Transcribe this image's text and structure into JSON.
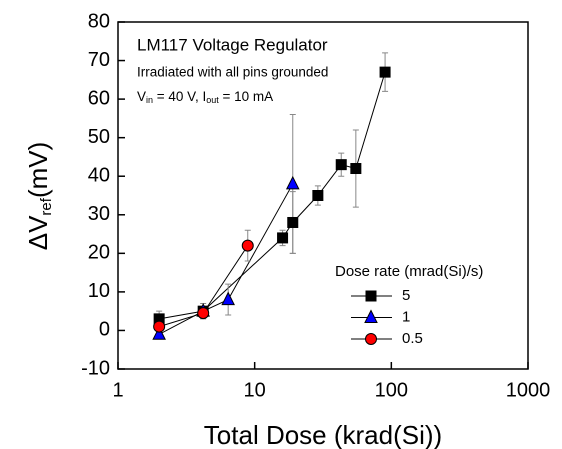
{
  "chart_data": {
    "type": "scatter",
    "xlabel": "Total Dose (krad(Si))",
    "ylabel": {
      "parts": [
        "ΔV",
        "ref",
        "(mV)"
      ]
    },
    "annotations": [
      "LM117 Voltage Regulator",
      "Irradiated with all pins grounded"
    ],
    "annotation_formula": {
      "parts": [
        "V",
        "in",
        " = 40 V, I",
        "out",
        " = 10 mA"
      ]
    },
    "legend_title": "Dose rate (mrad(Si)/s)",
    "xscale": "log",
    "xlim": [
      1,
      1000
    ],
    "xticks": [
      1,
      10,
      100,
      1000
    ],
    "ylim": [
      -10,
      80
    ],
    "yticks": [
      -10,
      0,
      10,
      20,
      30,
      40,
      50,
      60,
      70,
      80
    ],
    "series": [
      {
        "name": "5",
        "color": "#000000",
        "marker": "square",
        "x": [
          2,
          4.2,
          16,
          19,
          29,
          43,
          55,
          90
        ],
        "values": [
          3,
          5,
          24,
          28,
          35,
          43,
          42,
          67
        ],
        "errors": [
          2,
          2,
          2,
          8,
          2.5,
          3,
          10,
          5
        ]
      },
      {
        "name": "1",
        "color": "#0000ff",
        "marker": "triangle",
        "x": [
          2,
          4.2,
          6.4,
          19
        ],
        "values": [
          -1,
          5,
          8,
          38
        ],
        "errors": [
          1,
          1,
          4,
          18
        ]
      },
      {
        "name": "0.5",
        "color": "#ff0000",
        "marker": "circle",
        "x": [
          2,
          4.2,
          8.9
        ],
        "values": [
          1,
          4.5,
          22
        ],
        "errors": [
          1,
          1,
          4
        ]
      }
    ]
  }
}
